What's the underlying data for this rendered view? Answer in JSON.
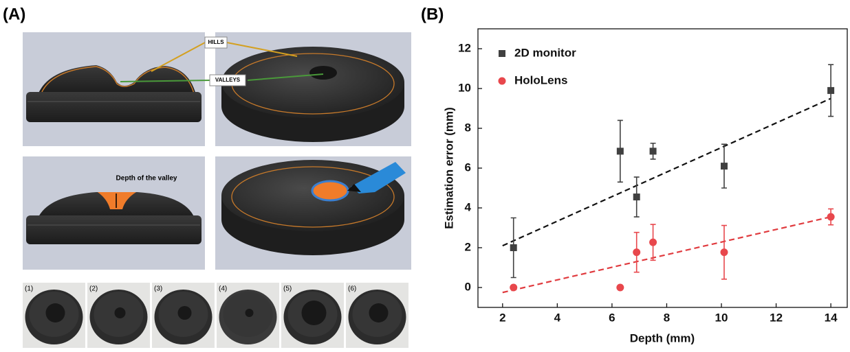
{
  "panel_a": {
    "label": "(A)",
    "hills": "HILLS",
    "valleys": "VALLEYS",
    "depth": "Depth of the valley",
    "photo_labels": [
      "(1)",
      "(2)",
      "(3)",
      "(4)",
      "(5)",
      "(6)"
    ]
  },
  "chart_data": {
    "type": "scatter",
    "label": "(B)",
    "x_label": "Depth (mm)",
    "y_label": "Estimation error (mm)",
    "x": [
      2.4,
      6.3,
      6.9,
      7.5,
      10.1,
      14.0
    ],
    "series": [
      {
        "name": "2D monitor",
        "color": "#404040",
        "marker": "square",
        "values": [
          2.0,
          6.85,
          4.55,
          6.85,
          6.1,
          9.9
        ],
        "errors": [
          1.5,
          1.55,
          1.0,
          0.4,
          1.1,
          1.3
        ],
        "fit": {
          "x": [
            2,
            14
          ],
          "y": [
            2.1,
            9.5
          ],
          "color": "#111111"
        }
      },
      {
        "name": "HoloLens",
        "color": "#e8474c",
        "marker": "circle",
        "values": [
          0,
          0,
          1.77,
          2.27,
          1.77,
          3.55
        ],
        "errors": [
          0,
          0,
          1.0,
          0.9,
          1.35,
          0.4
        ],
        "fit": {
          "x": [
            2,
            14
          ],
          "y": [
            -0.25,
            3.55
          ],
          "color": "#e03a3e"
        }
      }
    ],
    "xlim": [
      1.1,
      14.6
    ],
    "ylim": [
      -1,
      13
    ],
    "xticks": [
      2,
      4,
      6,
      8,
      10,
      12,
      14
    ],
    "yticks": [
      0,
      2,
      4,
      6,
      8,
      10,
      12
    ],
    "legend": "upper-left"
  }
}
